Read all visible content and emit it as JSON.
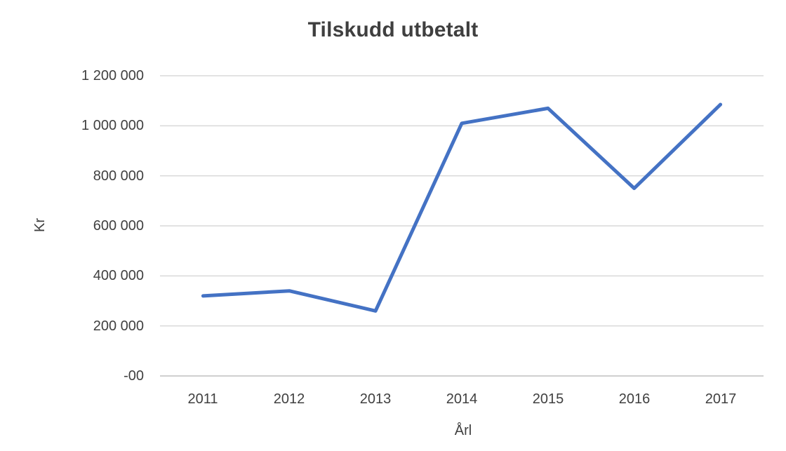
{
  "chart_data": {
    "type": "line",
    "title": "Tilskudd utbetalt",
    "xlabel": "Årl",
    "ylabel": "Kr",
    "categories": [
      "2011",
      "2012",
      "2013",
      "2014",
      "2015",
      "2016",
      "2017"
    ],
    "values": [
      320000,
      340000,
      260000,
      1010000,
      1070000,
      750000,
      1085000
    ],
    "series_name": "Tilskudd utbetalt",
    "ylim": [
      0,
      1200000
    ],
    "ytick_interval": 200000,
    "ytick_labels": [
      "-00",
      "200 000",
      "400 000",
      "600 000",
      "800 000",
      "1 000 000",
      "1 200 000"
    ],
    "grid": "horizontal",
    "legend": "none",
    "line_color": "#4472C4",
    "gridline_color": "#D9D9D9",
    "axis_color": "#BFBFBF",
    "text_color": "#404040",
    "background": "#FFFFFF"
  }
}
